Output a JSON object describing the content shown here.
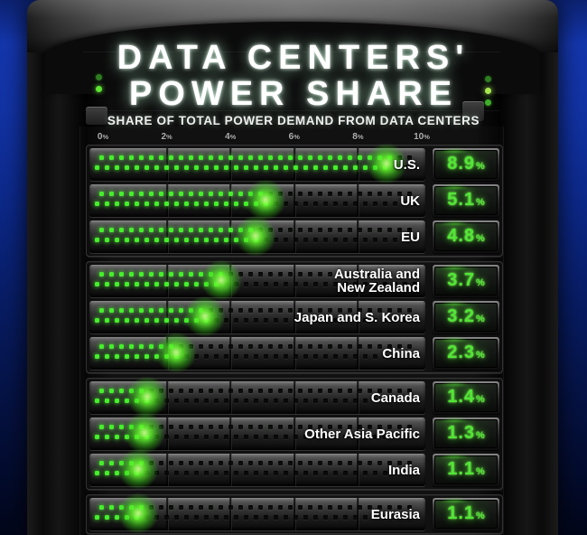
{
  "header": {
    "title_line1": "DATA CENTERS'",
    "title_line2": "POWER SHARE",
    "subtitle": "SHARE OF TOTAL POWER DEMAND FROM DATA CENTERS"
  },
  "axis": {
    "tick_labels": [
      "0%",
      "2%",
      "4%",
      "6%",
      "8%",
      "10%"
    ]
  },
  "value_suffix": "%",
  "colors": {
    "led_green": "#46ef2c",
    "value_green": "#52e636",
    "background_blue": "#1233a4"
  },
  "leds": {
    "left": [
      "dim",
      "bright"
    ],
    "right": [
      "dim",
      "brightest",
      "mid"
    ]
  },
  "chart_data": {
    "type": "bar",
    "orientation": "horizontal",
    "title": "DATA CENTERS' POWER SHARE",
    "subtitle": "SHARE OF TOTAL POWER DEMAND FROM DATA CENTERS",
    "unit": "%",
    "xlim": [
      0,
      10
    ],
    "x_ticks": [
      0,
      2,
      4,
      6,
      8,
      10
    ],
    "grid": true,
    "groups": [
      {
        "rows": [
          {
            "label": "U.S.",
            "value": 8.9,
            "display": "8.9"
          },
          {
            "label": "UK",
            "value": 5.1,
            "display": "5.1"
          },
          {
            "label": "EU",
            "value": 4.8,
            "display": "4.8"
          }
        ]
      },
      {
        "rows": [
          {
            "label": "Australia and\nNew Zealand",
            "value": 3.7,
            "display": "3.7"
          },
          {
            "label": "Japan and S. Korea",
            "value": 3.2,
            "display": "3.2"
          },
          {
            "label": "China",
            "value": 2.3,
            "display": "2.3"
          }
        ]
      },
      {
        "rows": [
          {
            "label": "Canada",
            "value": 1.4,
            "display": "1.4"
          },
          {
            "label": "Other Asia Pacific",
            "value": 1.3,
            "display": "1.3"
          },
          {
            "label": "India",
            "value": 1.1,
            "display": "1.1"
          }
        ]
      },
      {
        "rows": [
          {
            "label": "Eurasia",
            "value": 1.1,
            "display": "1.1"
          }
        ]
      }
    ]
  }
}
